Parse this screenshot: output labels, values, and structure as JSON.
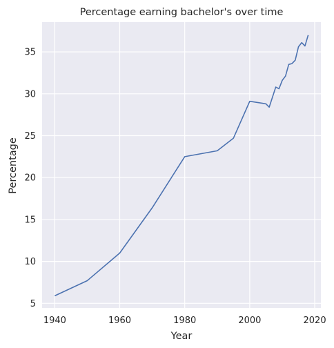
{
  "chart_data": {
    "type": "line",
    "title": "Percentage earning bachelor's over time",
    "xlabel": "Year",
    "ylabel": "Percentage",
    "xlim": [
      1936.1,
      2021.9
    ],
    "ylim": [
      4.45,
      38.55
    ],
    "x_ticks": [
      1940,
      1960,
      1980,
      2000,
      2020
    ],
    "y_ticks": [
      5,
      10,
      15,
      20,
      25,
      30,
      35
    ],
    "grid": true,
    "background": "#eaeaf2",
    "grid_color": "#ffffff",
    "line_color": "#4c72b0",
    "series": [
      {
        "x": [
          1940,
          1950,
          1960,
          1970,
          1980,
          1990,
          1995,
          2000,
          2005,
          2006,
          2008,
          2009,
          2010,
          2011,
          2012,
          2013,
          2014,
          2015,
          2016,
          2017,
          2018
        ],
        "y": [
          5.9,
          7.7,
          11.0,
          16.4,
          22.5,
          23.2,
          24.7,
          29.1,
          28.8,
          28.4,
          30.8,
          30.6,
          31.6,
          32.1,
          33.5,
          33.6,
          34.0,
          35.6,
          36.1,
          35.7,
          37.0
        ]
      }
    ]
  }
}
